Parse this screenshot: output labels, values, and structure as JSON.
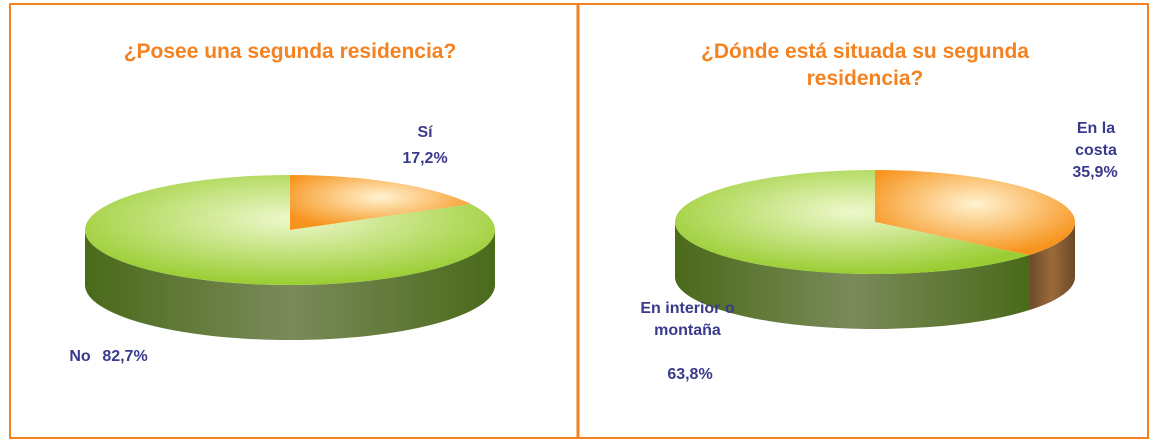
{
  "chart_data": [
    {
      "type": "pie",
      "title": "¿Posee una segunda residencia?",
      "categories": [
        "Sí",
        "No"
      ],
      "values": [
        17.2,
        82.7
      ],
      "value_labels": [
        "17,2%",
        "82,7%"
      ],
      "colors": [
        "#f7941d",
        "#9acd32"
      ]
    },
    {
      "type": "pie",
      "title": "¿Dónde está situada su segunda residencia?",
      "categories": [
        "En la costa",
        "En interior o montaña"
      ],
      "values": [
        35.9,
        63.8
      ],
      "value_labels": [
        "35,9%",
        "63,8%"
      ],
      "colors": [
        "#f7941d",
        "#9acd32"
      ]
    }
  ]
}
